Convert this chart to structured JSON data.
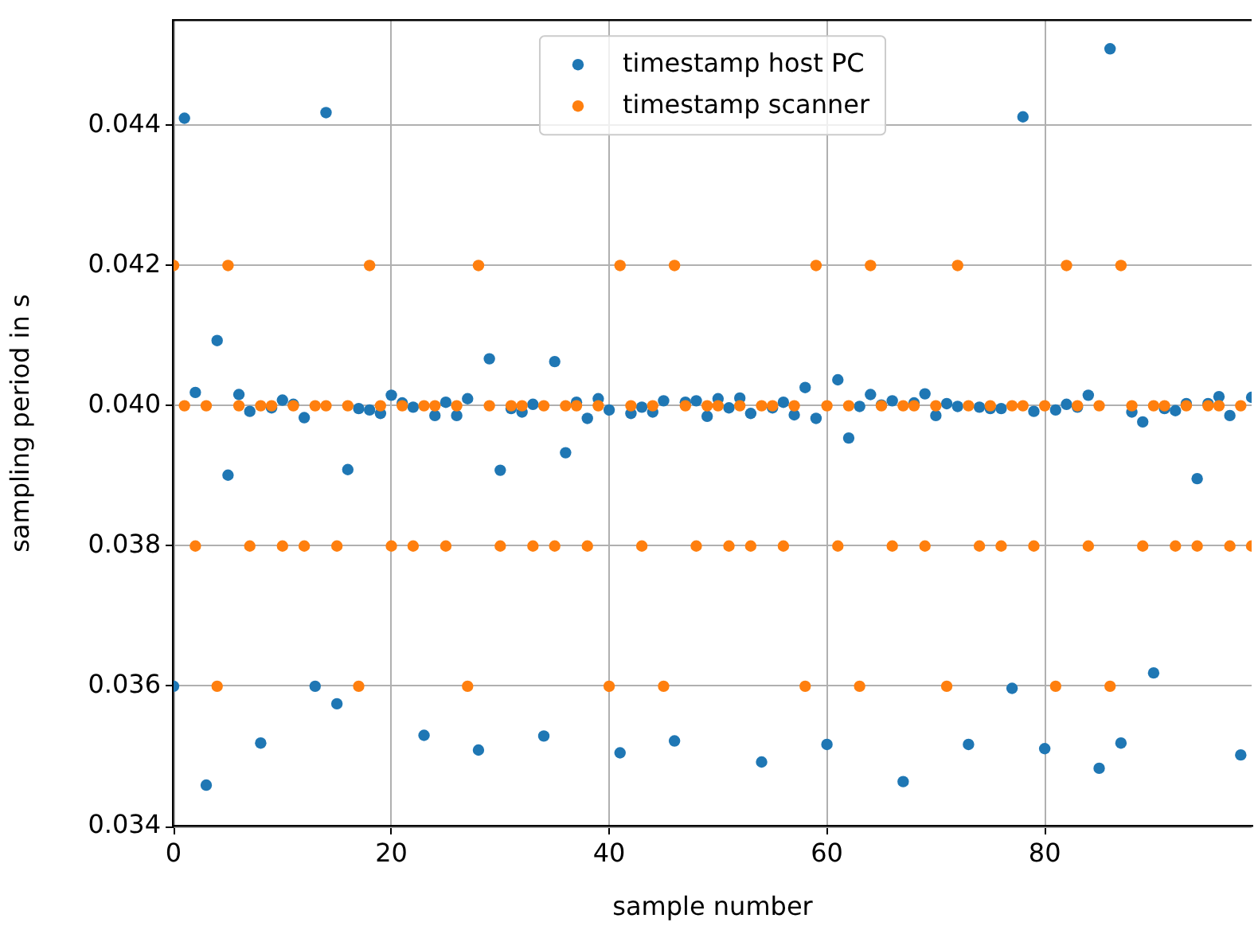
{
  "chart_data": {
    "type": "scatter",
    "xlabel": "sample number",
    "ylabel": "sampling period in s",
    "x": [
      0,
      1,
      2,
      3,
      4,
      5,
      6,
      7,
      8,
      9,
      10,
      11,
      12,
      13,
      14,
      15,
      16,
      17,
      18,
      19,
      20,
      21,
      22,
      23,
      24,
      25,
      26,
      27,
      28,
      29,
      30,
      31,
      32,
      33,
      34,
      35,
      36,
      37,
      38,
      39,
      40,
      41,
      42,
      43,
      44,
      45,
      46,
      47,
      48,
      49,
      50,
      51,
      52,
      53,
      54,
      55,
      56,
      57,
      58,
      59,
      60,
      61,
      62,
      63,
      64,
      65,
      66,
      67,
      68,
      69,
      70,
      71,
      72,
      73,
      74,
      75,
      76,
      77,
      78,
      79,
      80,
      81,
      82,
      83,
      84,
      85,
      86,
      87,
      88,
      89,
      90,
      91,
      92,
      93,
      94,
      95,
      96,
      97,
      98,
      99
    ],
    "series": [
      {
        "name": "timestamp host PC",
        "color": "#1f77b4",
        "values": [
          0.036,
          0.0441,
          0.04019,
          0.03459,
          0.04093,
          0.03901,
          0.04016,
          0.03992,
          0.03519,
          0.03997,
          0.04008,
          0.04002,
          0.03983,
          0.036,
          0.04418,
          0.03575,
          0.03909,
          0.03996,
          0.03994,
          0.03989,
          0.04015,
          0.04004,
          0.03998,
          0.0353,
          0.03986,
          0.04005,
          0.03986,
          0.0401,
          0.03509,
          0.04067,
          0.03908,
          0.03996,
          0.03991,
          0.04002,
          0.03529,
          0.04063,
          0.03933,
          0.04005,
          0.03982,
          0.0401,
          0.03994,
          0.03505,
          0.03989,
          0.03998,
          0.03991,
          0.04007,
          0.03522,
          0.04005,
          0.04007,
          0.03985,
          0.0401,
          0.03997,
          0.04011,
          0.03989,
          0.03492,
          0.03997,
          0.04005,
          0.03987,
          0.04026,
          0.03982,
          0.03517,
          0.04037,
          0.03954,
          0.03999,
          0.04016,
          0.04001,
          0.04007,
          0.03464,
          0.04004,
          0.04017,
          0.03986,
          0.04003,
          0.03999,
          0.03517,
          0.03998,
          0.03996,
          0.03996,
          0.03597,
          0.04412,
          0.03992,
          0.03511,
          0.03994,
          0.04002,
          0.03998,
          0.04015,
          0.03483,
          0.04509,
          0.03519,
          0.03991,
          0.03977,
          0.03619,
          0.03996,
          0.03993,
          0.04003,
          0.03896,
          0.04003,
          0.04013,
          0.03986,
          0.03502,
          0.04012
        ]
      },
      {
        "name": "timestamp scanner",
        "color": "#ff7f0e",
        "values": [
          0.042,
          0.04,
          0.038,
          0.04,
          0.036,
          0.042,
          0.04,
          0.038,
          0.04,
          0.04,
          0.038,
          0.04,
          0.038,
          0.04,
          0.04,
          0.038,
          0.04,
          0.036,
          0.042,
          0.04,
          0.038,
          0.04,
          0.038,
          0.04,
          0.04,
          0.038,
          0.04,
          0.036,
          0.042,
          0.04,
          0.038,
          0.04,
          0.04,
          0.038,
          0.04,
          0.038,
          0.04,
          0.04,
          0.038,
          0.04,
          0.036,
          0.042,
          0.04,
          0.038,
          0.04,
          0.036,
          0.042,
          0.04,
          0.038,
          0.04,
          0.04,
          0.038,
          0.04,
          0.038,
          0.04,
          0.04,
          0.038,
          0.04,
          0.036,
          0.042,
          0.04,
          0.038,
          0.04,
          0.036,
          0.042,
          0.04,
          0.038,
          0.04,
          0.04,
          0.038,
          0.04,
          0.036,
          0.042,
          0.04,
          0.038,
          0.04,
          0.038,
          0.04,
          0.04,
          0.038,
          0.04,
          0.036,
          0.042,
          0.04,
          0.038,
          0.04,
          0.036,
          0.042,
          0.04,
          0.038,
          0.04,
          0.04,
          0.038,
          0.04,
          0.038,
          0.04,
          0.04,
          0.038,
          0.04,
          0.038
        ]
      }
    ],
    "xlim": [
      0,
      99
    ],
    "xticks": [
      0,
      20,
      40,
      60,
      80
    ],
    "ylim": [
      0.034,
      0.0455
    ],
    "yticks": [
      {
        "value": 0.034,
        "label": "0.034"
      },
      {
        "value": 0.036,
        "label": "0.036"
      },
      {
        "value": 0.038,
        "label": "0.038"
      },
      {
        "value": 0.04,
        "label": "0.040"
      },
      {
        "value": 0.042,
        "label": "0.042"
      },
      {
        "value": 0.044,
        "label": "0.044"
      }
    ],
    "grid": true,
    "legend": "top",
    "marker": "circle"
  }
}
